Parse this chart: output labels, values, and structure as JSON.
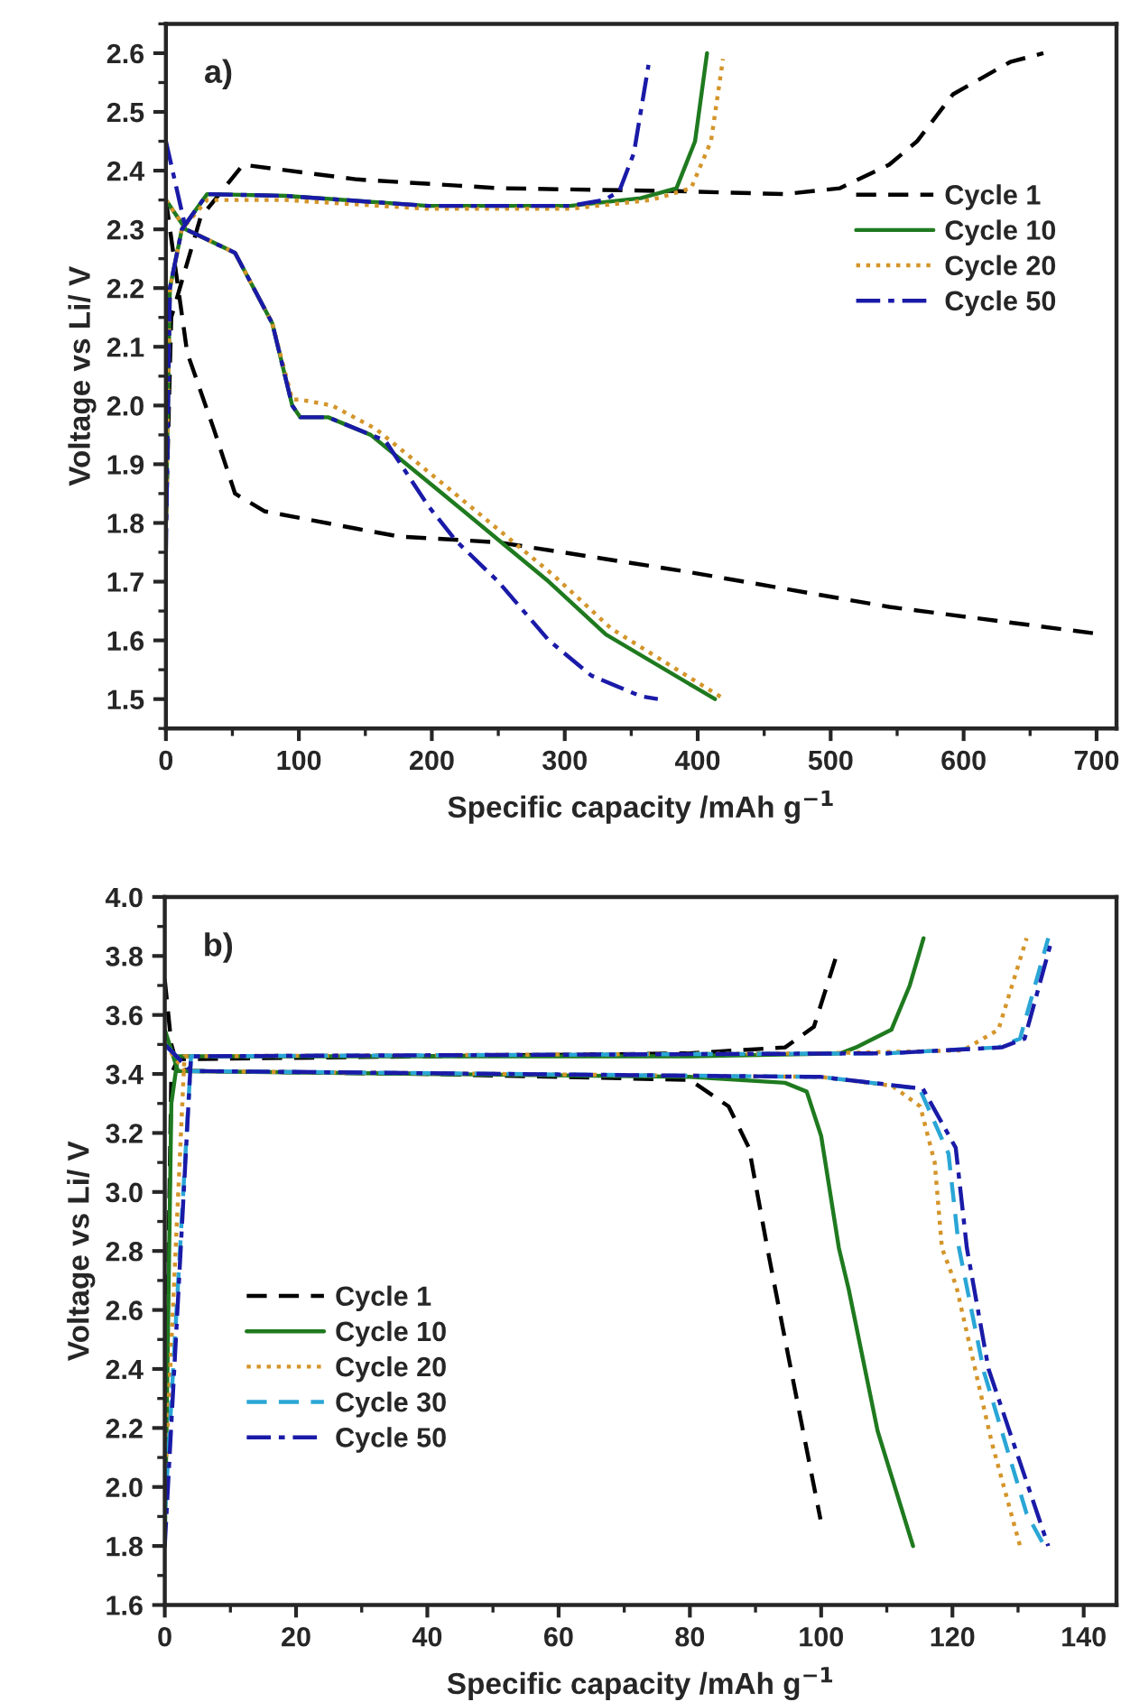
{
  "chart_data": [
    {
      "type": "line",
      "annotations": [
        "a)"
      ],
      "xlabel": "Specific capacity /mAh g$^{−1}$",
      "ylabel": "Voltage vs Li/ V",
      "xlim": [
        0,
        715
      ],
      "ylim": [
        1.45,
        2.65
      ],
      "xticks": [
        0,
        100,
        200,
        300,
        400,
        500,
        600,
        700
      ],
      "yticks": [
        1.5,
        1.6,
        1.7,
        1.8,
        1.9,
        {
          "value": 2,
          "label": "2.0"
        },
        2.1,
        2.2,
        2.3,
        2.4,
        2.5,
        2.6
      ],
      "legend": "right",
      "grid": false,
      "series": [
        {
          "name": "Cycle 1",
          "color": "#000000",
          "line_style": "dashed",
          "x": [
            0,
            8,
            16,
            36,
            52,
            74,
            144,
            175,
            250,
            389,
            544,
            705,
            null,
            0,
            4,
            26,
            58,
            144,
            251,
            385,
            465,
            507,
            544,
            565,
            592,
            635,
            660
          ],
          "values": [
            2.35,
            2.22,
            2.09,
            1.96,
            1.85,
            1.82,
            1.79,
            1.777,
            1.767,
            1.718,
            1.657,
            1.61,
            null,
            1.8,
            2.15,
            2.32,
            2.41,
            2.385,
            2.37,
            2.365,
            2.36,
            2.37,
            2.41,
            2.45,
            2.53,
            2.585,
            2.6
          ]
        },
        {
          "name": "Cycle 10",
          "color": "#1f7a1f",
          "line_style": "solid",
          "x": [
            0,
            15,
            52,
            80,
            95,
            101,
            122,
            154,
            208,
            256,
            288,
            331,
            413,
            null,
            0,
            3,
            12,
            31,
            90,
            197,
            304,
            357,
            384,
            398,
            407
          ],
          "values": [
            2.35,
            2.3,
            2.26,
            2.14,
            2.0,
            1.98,
            1.98,
            1.95,
            1.85,
            1.76,
            1.7,
            1.61,
            1.5,
            null,
            1.8,
            2.2,
            2.3,
            2.36,
            2.357,
            2.34,
            2.34,
            2.353,
            2.37,
            2.45,
            2.6
          ]
        },
        {
          "name": "Cycle 20",
          "color": "#d4952a",
          "line_style": "dotted",
          "x": [
            0,
            15,
            52,
            80,
            95,
            101,
            125,
            158,
            212,
            260,
            292,
            335,
            420,
            null,
            0,
            3,
            12,
            31,
            90,
            197,
            304,
            365,
            395,
            410,
            419
          ],
          "values": [
            2.35,
            2.3,
            2.26,
            2.14,
            2.01,
            2.01,
            2.0,
            1.96,
            1.86,
            1.77,
            1.71,
            1.62,
            1.5,
            null,
            1.8,
            2.2,
            2.3,
            2.35,
            2.35,
            2.335,
            2.335,
            2.35,
            2.37,
            2.45,
            2.59
          ]
        },
        {
          "name": "Cycle 50",
          "color": "#1a1aa8",
          "line_style": "dashdot",
          "x": [
            0,
            15,
            52,
            80,
            95,
            101,
            122,
            165,
            197,
            218,
            250,
            288,
            320,
            357,
            370,
            null,
            0,
            3,
            12,
            31,
            90,
            197,
            304,
            330,
            341,
            352,
            363
          ],
          "values": [
            2.45,
            2.3,
            2.26,
            2.14,
            2.0,
            1.98,
            1.98,
            1.94,
            1.83,
            1.77,
            1.7,
            1.6,
            1.54,
            1.505,
            1.5,
            null,
            1.75,
            2.2,
            2.3,
            2.36,
            2.357,
            2.34,
            2.34,
            2.35,
            2.365,
            2.43,
            2.58
          ]
        }
      ]
    },
    {
      "type": "line",
      "annotations": [
        "b)"
      ],
      "xlabel": "Specific capacity /mAh g$^{−1}$",
      "ylabel": "Voltage vs Li/ V",
      "xlim": [
        0,
        145
      ],
      "ylim": [
        1.6,
        4.0
      ],
      "xticks": [
        0,
        20,
        40,
        60,
        80,
        100,
        120,
        140
      ],
      "yticks": [
        1.6,
        1.8,
        {
          "value": 2,
          "label": "2.0"
        },
        2.2,
        2.4,
        2.6,
        2.8,
        {
          "value": 3,
          "label": "3.0"
        },
        3.2,
        3.4,
        3.6,
        3.8,
        {
          "value": 4,
          "label": "4.0"
        }
      ],
      "legend": "left",
      "grid": false,
      "series": [
        {
          "name": "Cycle 1",
          "color": "#000000",
          "line_style": "dashed",
          "x": [
            0,
            1,
            2,
            40,
            80,
            94.5,
            98.9,
            102.6,
            null,
            0,
            1,
            2,
            4,
            40,
            80,
            85.9,
            89,
            91.8,
            94.5,
            99.9
          ],
          "values": [
            2.0,
            3.4,
            3.45,
            3.46,
            3.47,
            3.49,
            3.56,
            3.82,
            null,
            3.72,
            3.5,
            3.42,
            3.41,
            3.4,
            3.38,
            3.29,
            3.15,
            2.81,
            2.5,
            1.89
          ]
        },
        {
          "name": "Cycle 10",
          "color": "#1f7a1f",
          "line_style": "solid",
          "x": [
            0,
            1,
            2,
            40,
            80,
            103,
            105.3,
            110.7,
            113.5,
            115.6,
            null,
            0,
            2,
            80,
            94.5,
            97.8,
            100,
            102.7,
            104.2,
            108.6,
            114
          ],
          "values": [
            1.8,
            3.3,
            3.46,
            3.46,
            3.46,
            3.47,
            3.49,
            3.55,
            3.7,
            3.86,
            null,
            3.55,
            3.41,
            3.39,
            3.37,
            3.34,
            3.19,
            2.81,
            2.67,
            2.19,
            1.8
          ]
        },
        {
          "name": "Cycle 20",
          "color": "#d4952a",
          "line_style": "dotted",
          "x": [
            0,
            3,
            100,
            121.6,
            127,
            131.3,
            null,
            0,
            3,
            100,
            110.8,
            115.1,
            117.3,
            118.4,
            120.6,
            126,
            130.3
          ],
          "values": [
            2.0,
            3.46,
            3.47,
            3.48,
            3.55,
            3.86,
            null,
            3.5,
            3.41,
            3.39,
            3.36,
            3.29,
            3.1,
            2.81,
            2.68,
            2.15,
            1.8
          ]
        },
        {
          "name": "Cycle 30",
          "color": "#2aa6d6",
          "line_style": "dashed",
          "x": [
            0,
            4,
            110,
            127,
            130.3,
            134.6,
            null,
            0,
            4,
            100,
            115,
            119.4,
            121,
            124.8,
            131.3,
            134
          ],
          "values": [
            1.9,
            3.46,
            3.47,
            3.49,
            3.52,
            3.86,
            null,
            3.5,
            3.41,
            3.39,
            3.35,
            3.13,
            2.81,
            2.39,
            1.91,
            1.8
          ]
        },
        {
          "name": "Cycle 50",
          "color": "#1a1aa8",
          "line_style": "dashdot",
          "x": [
            0,
            4,
            110,
            127.5,
            131,
            135.2,
            null,
            0,
            4,
            100,
            115.5,
            120.5,
            122.2,
            125.5,
            134.6
          ],
          "values": [
            1.8,
            3.46,
            3.47,
            3.49,
            3.52,
            3.86,
            null,
            3.5,
            3.41,
            3.39,
            3.35,
            3.15,
            2.81,
            2.4,
            1.8
          ]
        }
      ]
    }
  ]
}
